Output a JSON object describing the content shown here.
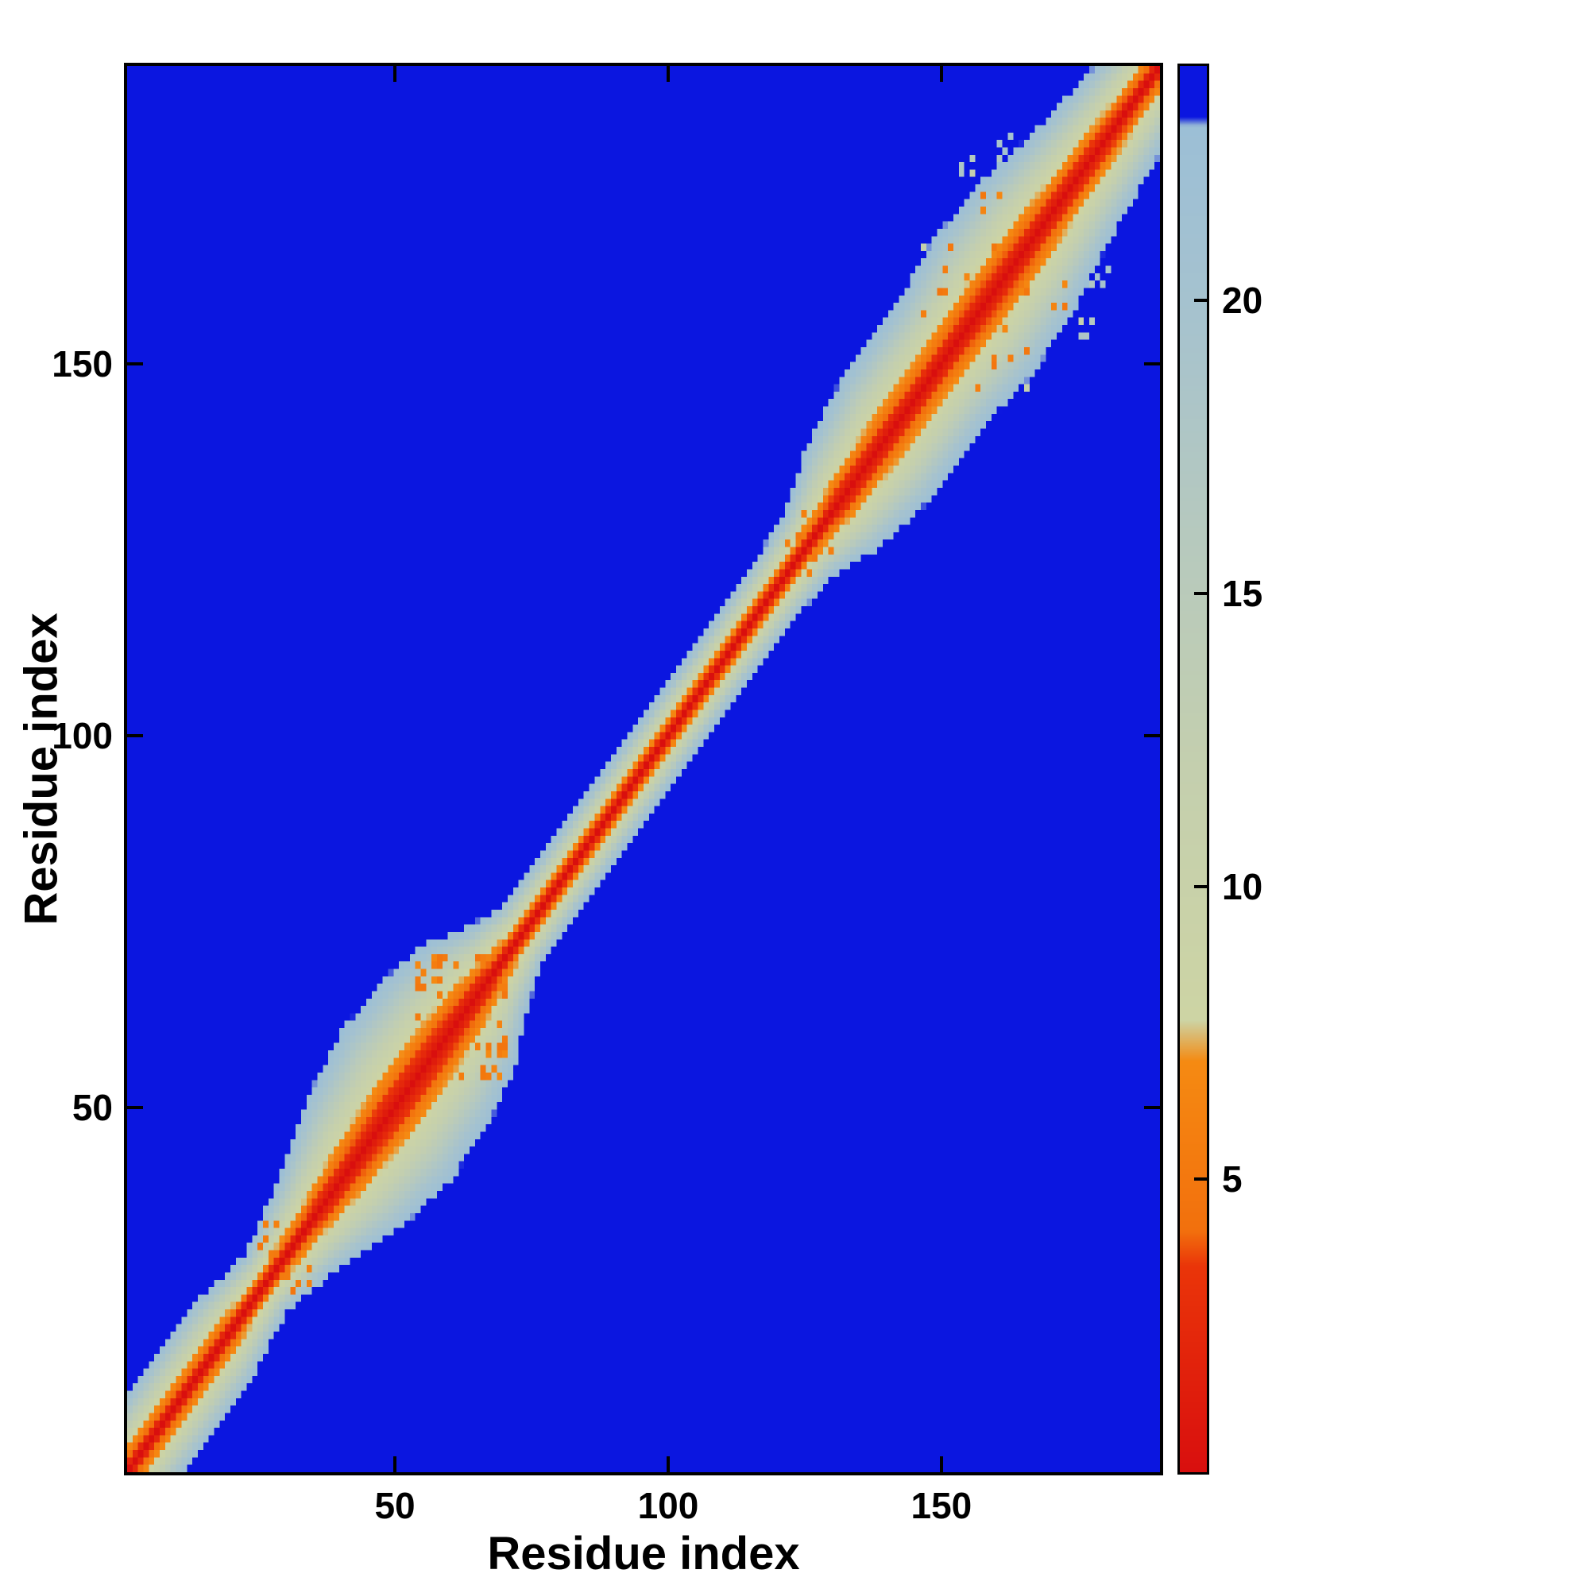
{
  "figure": {
    "background_color": "#ffffff"
  },
  "chart_data": {
    "type": "heatmap",
    "title": "",
    "xlabel": "Residue index",
    "ylabel": "Residue index",
    "x_range": [
      1,
      190
    ],
    "y_range": [
      1,
      190
    ],
    "x_ticks": [
      50,
      100,
      150
    ],
    "y_ticks": [
      50,
      100,
      150
    ],
    "n_residues": 190,
    "grid": false,
    "legend": null,
    "matrix_model": "symmetric residue-residue distance map: value(i,j) = min(vmax, |i-j| * vmax / band_width(midpoint)); values at vmax render as background blue (clipped); band_width_profile gives the residue separation at which the value saturates, producing the variable-width diagonal band",
    "band_width_profile": [
      [
        1,
        11
      ],
      [
        18,
        11
      ],
      [
        26,
        8
      ],
      [
        34,
        12
      ],
      [
        42,
        18
      ],
      [
        50,
        21
      ],
      [
        58,
        20
      ],
      [
        64,
        17
      ],
      [
        68,
        12
      ],
      [
        73,
        8
      ],
      [
        80,
        7.5
      ],
      [
        112,
        7.5
      ],
      [
        120,
        8
      ],
      [
        126,
        9
      ],
      [
        132,
        14
      ],
      [
        140,
        17
      ],
      [
        150,
        17
      ],
      [
        158,
        19
      ],
      [
        166,
        18
      ],
      [
        174,
        15
      ],
      [
        182,
        13
      ],
      [
        190,
        11
      ]
    ],
    "speckle_regions": [
      {
        "center": 164,
        "radius": 17,
        "seed": 42,
        "pale_density": 0.3,
        "orange_density": 0.06
      },
      {
        "center": 62,
        "radius": 8,
        "seed": 7,
        "pale_density": 0.05,
        "orange_density": 0.22
      },
      {
        "center": 30,
        "radius": 5,
        "seed": 3,
        "pale_density": 0.06,
        "orange_density": 0.25
      },
      {
        "center": 126,
        "radius": 4,
        "seed": 11,
        "pale_density": 0.02,
        "orange_density": 0.3
      }
    ],
    "colorbar": {
      "vmin": 0,
      "vmax": 24,
      "ticks": [
        5,
        10,
        15,
        20
      ],
      "orientation": "vertical"
    },
    "colormap": {
      "background": "#0b16e0",
      "stops": [
        {
          "value": 0,
          "color": "#d90f0e"
        },
        {
          "value": 3.5,
          "color": "#ea3509"
        },
        {
          "value": 4.1,
          "color": "#f2700d"
        },
        {
          "value": 7.0,
          "color": "#f58a12"
        },
        {
          "value": 7.7,
          "color": "#cdd4a4"
        },
        {
          "value": 12,
          "color": "#c4cfae"
        },
        {
          "value": 16,
          "color": "#b6c9be"
        },
        {
          "value": 20,
          "color": "#a5c2cf"
        },
        {
          "value": 23.0,
          "color": "#9cbfd6"
        },
        {
          "value": 23.15,
          "color": "#0b16e0"
        },
        {
          "value": 24,
          "color": "#0b16e0"
        }
      ]
    }
  }
}
